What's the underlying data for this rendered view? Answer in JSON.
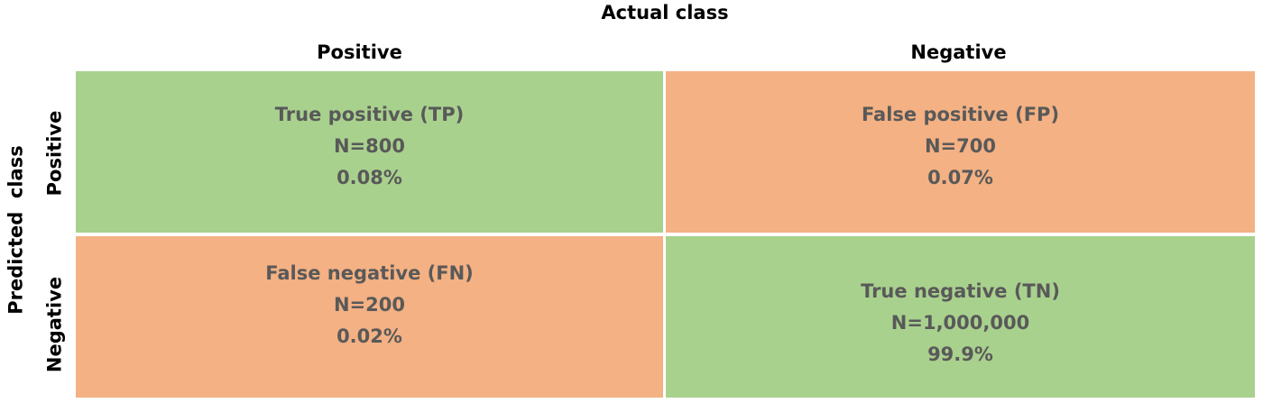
{
  "header": {
    "actual_title": "Actual class",
    "predicted_title": "Predicted  class"
  },
  "columns": {
    "positive": "Positive",
    "negative": "Negative"
  },
  "rows": {
    "positive": "Positive",
    "negative": "Negative"
  },
  "cells": {
    "tp": {
      "label": "True positive (TP)",
      "count": "N=800",
      "percent": "0.08%"
    },
    "fp": {
      "label": "False positive (FP)",
      "count": "N=700",
      "percent": "0.07%"
    },
    "fn": {
      "label": "False negative (FN)",
      "count": "N=200",
      "percent": "0.02%"
    },
    "tn": {
      "label": "True negative (TN)",
      "count": "N=1,000,000",
      "percent": "99.9%"
    }
  },
  "colors": {
    "correct": "#a9d18e",
    "incorrect": "#f4b183",
    "cell_text": "#595959"
  }
}
